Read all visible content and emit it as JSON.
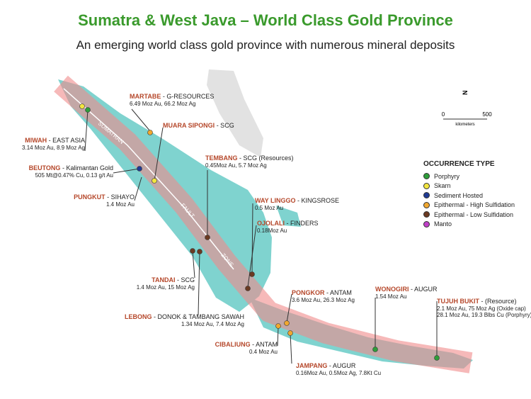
{
  "header": {
    "title": "Sumatra & West Java – World Class Gold Province",
    "subtitle": "An emerging world class gold province with numerous mineral deposits"
  },
  "map_labels": {
    "fault": [
      "SUMATRAN",
      "FAULT",
      "ZONE"
    ],
    "north": "N",
    "scale": [
      "0",
      "500"
    ],
    "scale_unit": "kilometers"
  },
  "legend": {
    "title": "OCCURRENCE TYPE",
    "items": [
      {
        "label": "Porphyry",
        "color": "#2e9e3a"
      },
      {
        "label": "Skarn",
        "color": "#f2e640"
      },
      {
        "label": "Sediment Hosted",
        "color": "#1f3a93"
      },
      {
        "label": "Epithermal - High Sulfidation",
        "color": "#f0a830"
      },
      {
        "label": "Epithermal - Low Sulfidation",
        "color": "#6b3a22"
      },
      {
        "label": "Manto",
        "color": "#c040c8"
      }
    ]
  },
  "deposits": [
    {
      "name": "MARTABE",
      "company": "- G-RESOURCES",
      "lines": [
        "6.49 Moz Au, 66.2 Moz Ag"
      ]
    },
    {
      "name": "MIWAH",
      "company": "- EAST ASIA",
      "lines": [
        "3.14 Moz Au, 8.9 Moz Ag"
      ]
    },
    {
      "name": "BEUTONG",
      "company": "- Kalimantan Gold",
      "lines": [
        "505 Mt@0.47% Cu, 0.13 g/t Au"
      ]
    },
    {
      "name": "MUARA SIPONGI",
      "company": "- SCG",
      "lines": []
    },
    {
      "name": "TEMBANG",
      "company": "- SCG (Resources)",
      "lines": [
        "0.45Moz Au, 5.7 Moz Ag"
      ]
    },
    {
      "name": "PUNGKUT",
      "company": "- SIHAYO",
      "lines": [
        "1.4 Moz Au"
      ]
    },
    {
      "name": "WAY LINGGO",
      "company": "- KINGSROSE",
      "lines": [
        "0.5 Moz Au"
      ]
    },
    {
      "name": "OJOLALI",
      "company": "- FINDERS",
      "lines": [
        "0.18Moz Au"
      ]
    },
    {
      "name": "TANDAI",
      "company": "- SCG",
      "lines": [
        "1.4 Moz Au, 15 Moz Ag"
      ]
    },
    {
      "name": "LEBONG",
      "company": "- DONOK & TAMBANG SAWAH",
      "lines": [
        "1.34 Moz Au, 7.4 Moz Ag"
      ]
    },
    {
      "name": "PONGKOR",
      "company": "- ANTAM",
      "lines": [
        "3.6 Moz Au, 26.3 Moz Ag"
      ]
    },
    {
      "name": "WONOGIRI",
      "company": "- AUGUR",
      "lines": [
        "1.54 Moz Au"
      ]
    },
    {
      "name": "TUJUH BUKIT",
      "company": "- (Resource)",
      "lines": [
        "2.1 Moz Au, 75 Moz Ag (Oxide cap)",
        "28.1 Moz Au, 19.3 Blbs Cu (Porphyry)"
      ]
    },
    {
      "name": "CIBALIUNG",
      "company": "- ANTAM",
      "lines": [
        "0.4 Moz Au"
      ]
    },
    {
      "name": "JAMPANG",
      "company": "- AUGUR",
      "lines": [
        "0.16Moz Au, 0.5Moz Ag, 7.8Kt Cu"
      ]
    }
  ]
}
